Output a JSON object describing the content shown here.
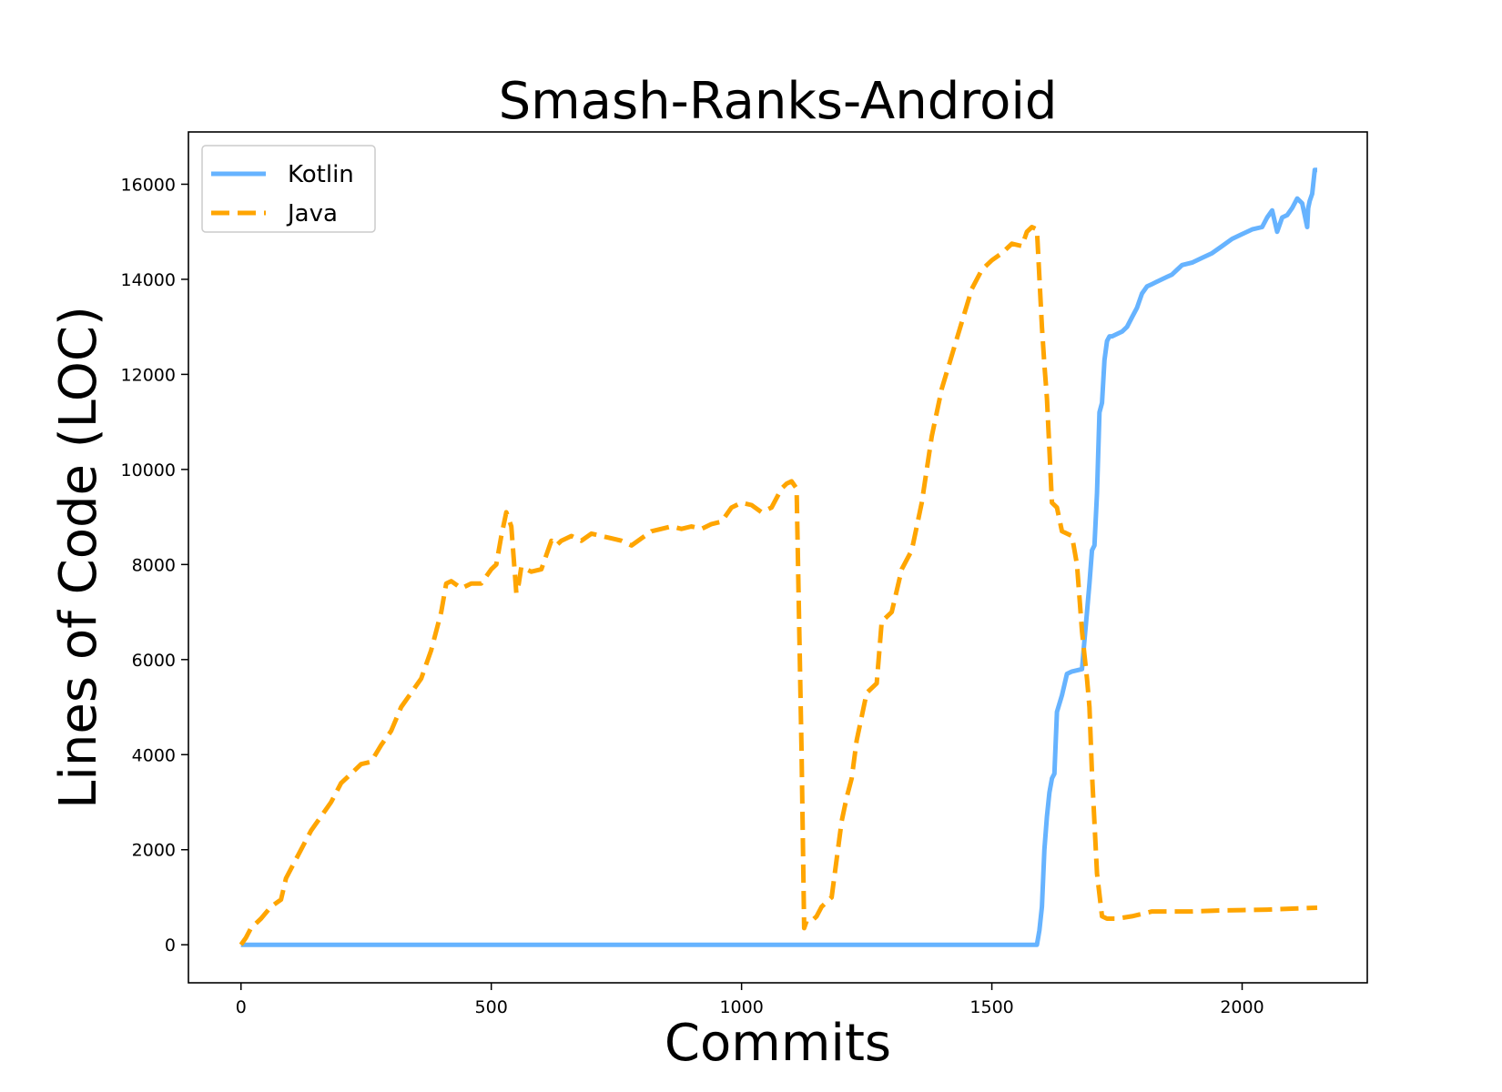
{
  "chart_data": {
    "type": "line",
    "title": "Smash-Ranks-Android",
    "xlabel": "Commits",
    "ylabel": "Lines of Code (LOC)",
    "xlim": [
      -105,
      2250
    ],
    "ylim": [
      -800,
      17100
    ],
    "xticks": [
      0,
      500,
      1000,
      1500,
      2000
    ],
    "yticks": [
      0,
      2000,
      4000,
      6000,
      8000,
      10000,
      12000,
      14000,
      16000
    ],
    "grid": false,
    "legend": {
      "placement": "top-left",
      "entries": [
        "Kotlin",
        "Java"
      ]
    },
    "series": [
      {
        "name": "Kotlin",
        "color": "#66b3ff",
        "linestyle": "solid",
        "x": [
          0,
          1590,
          1595,
          1600,
          1605,
          1610,
          1615,
          1620,
          1625,
          1630,
          1640,
          1650,
          1660,
          1680,
          1685,
          1690,
          1695,
          1700,
          1705,
          1710,
          1715,
          1720,
          1725,
          1730,
          1735,
          1740,
          1760,
          1770,
          1780,
          1790,
          1800,
          1810,
          1820,
          1830,
          1840,
          1850,
          1860,
          1870,
          1880,
          1900,
          1920,
          1940,
          1960,
          1980,
          2000,
          2020,
          2040,
          2050,
          2060,
          2070,
          2080,
          2090,
          2100,
          2110,
          2120,
          2130,
          2132,
          2135,
          2140,
          2145,
          2150
        ],
        "y": [
          0,
          0,
          300,
          800,
          2000,
          2700,
          3200,
          3500,
          3600,
          4900,
          5250,
          5700,
          5750,
          5800,
          6400,
          7000,
          7600,
          8300,
          8400,
          9500,
          11200,
          11400,
          12300,
          12700,
          12800,
          12800,
          12900,
          13000,
          13200,
          13400,
          13700,
          13850,
          13900,
          13950,
          14000,
          14050,
          14100,
          14200,
          14300,
          14350,
          14450,
          14550,
          14700,
          14850,
          14950,
          15050,
          15100,
          15300,
          15450,
          15000,
          15300,
          15350,
          15500,
          15700,
          15600,
          15100,
          15500,
          15650,
          15800,
          16300,
          16300
        ]
      },
      {
        "name": "Java",
        "color": "#ffa500",
        "linestyle": "dashed",
        "x": [
          0,
          10,
          20,
          40,
          60,
          80,
          90,
          100,
          120,
          140,
          160,
          180,
          200,
          220,
          240,
          260,
          280,
          300,
          320,
          340,
          360,
          380,
          400,
          410,
          420,
          440,
          460,
          480,
          500,
          510,
          520,
          530,
          540,
          550,
          555,
          560,
          570,
          580,
          600,
          620,
          630,
          640,
          660,
          680,
          700,
          720,
          740,
          760,
          780,
          800,
          820,
          840,
          860,
          880,
          900,
          920,
          940,
          960,
          980,
          1000,
          1020,
          1040,
          1060,
          1080,
          1090,
          1100,
          1110,
          1120,
          1125,
          1130,
          1140,
          1150,
          1160,
          1180,
          1200,
          1210,
          1220,
          1230,
          1250,
          1270,
          1280,
          1290,
          1300,
          1320,
          1340,
          1360,
          1380,
          1400,
          1420,
          1440,
          1460,
          1480,
          1500,
          1520,
          1540,
          1560,
          1570,
          1580,
          1590,
          1600,
          1605,
          1610,
          1620,
          1630,
          1640,
          1650,
          1660,
          1670,
          1680,
          1685,
          1690,
          1695,
          1700,
          1710,
          1720,
          1730,
          1735,
          1740,
          1750,
          1780,
          1800,
          1820,
          1850,
          1900,
          1950,
          2000,
          2050,
          2100,
          2150
        ],
        "y": [
          0,
          150,
          350,
          550,
          800,
          950,
          1400,
          1600,
          2000,
          2400,
          2700,
          3000,
          3400,
          3600,
          3800,
          3850,
          4200,
          4500,
          5000,
          5300,
          5600,
          6200,
          7000,
          7600,
          7650,
          7500,
          7600,
          7600,
          7900,
          8000,
          8600,
          9100,
          8800,
          7400,
          7600,
          7950,
          7900,
          7850,
          7900,
          8500,
          8400,
          8500,
          8600,
          8500,
          8650,
          8600,
          8550,
          8500,
          8400,
          8550,
          8700,
          8750,
          8800,
          8750,
          8800,
          8750,
          8850,
          8900,
          9200,
          9300,
          9250,
          9100,
          9200,
          9600,
          9700,
          9750,
          9600,
          4000,
          350,
          500,
          500,
          600,
          800,
          1000,
          2600,
          3100,
          3500,
          4300,
          5300,
          5500,
          6800,
          6900,
          7000,
          7900,
          8300,
          9300,
          10700,
          11700,
          12400,
          13100,
          13800,
          14200,
          14400,
          14550,
          14750,
          14700,
          15000,
          15100,
          15050,
          13000,
          12200,
          11500,
          9300,
          9200,
          8700,
          8650,
          8600,
          8000,
          6600,
          6100,
          5600,
          5000,
          3600,
          1500,
          600,
          550,
          550,
          550,
          550,
          600,
          650,
          700,
          700,
          700,
          720,
          730,
          740,
          760,
          780
        ]
      }
    ]
  }
}
